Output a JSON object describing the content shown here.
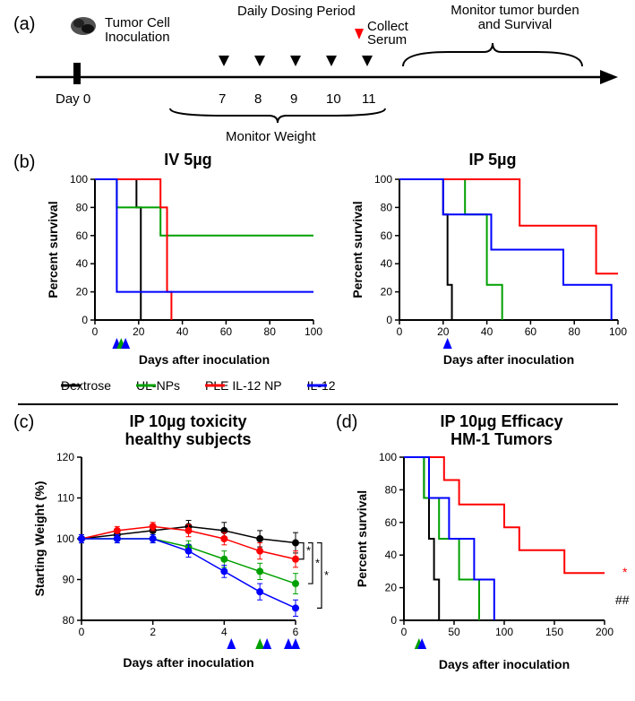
{
  "panels": {
    "a": {
      "label": "(a)"
    },
    "b": {
      "label": "(b)"
    },
    "c": {
      "label": "(c)"
    },
    "d": {
      "label": "(d)"
    }
  },
  "timeline": {
    "inoculation_label": "Tumor Cell\nInoculation",
    "dosing_label": "Daily Dosing Period",
    "serum_label": "Collect\nSerum",
    "monitor_burden_label": "Monitor tumor burden\nand Survival",
    "day0_label": "Day 0",
    "days": [
      "7",
      "8",
      "9",
      "10",
      "11"
    ],
    "monitor_weight_label": "Monitor Weight",
    "line_color": "#000000",
    "arrowhead_color": "#000000",
    "serum_arrow_color": "#ff0000",
    "tumor_icon": "●"
  },
  "legend": {
    "items": [
      {
        "name": "Dextrose",
        "color": "#000000"
      },
      {
        "name": "UL-NPs",
        "color": "#00a000"
      },
      {
        "name": "PLE IL-12 NP",
        "color": "#ff0000"
      },
      {
        "name": "IL-12",
        "color": "#0000ff"
      }
    ]
  },
  "chart_b_left": {
    "title": "IV 5µg",
    "type": "kaplan-meier",
    "xlabel": "Days after inoculation",
    "ylabel": "Percent survival",
    "xlim": [
      0,
      100
    ],
    "xticks": [
      0,
      20,
      40,
      60,
      80,
      100
    ],
    "ylim": [
      0,
      100
    ],
    "yticks": [
      0,
      20,
      40,
      60,
      80,
      100
    ],
    "background": "#ffffff",
    "axis_color": "#000000",
    "line_width": 2,
    "arrows": [
      {
        "x": 10,
        "color": "#0000ff"
      },
      {
        "x": 12,
        "color": "#00a000"
      },
      {
        "x": 14,
        "color": "#0000ff"
      }
    ],
    "series": {
      "Dextrose": {
        "color": "#000000",
        "steps": [
          [
            0,
            100
          ],
          [
            19,
            100
          ],
          [
            19,
            80
          ],
          [
            21,
            80
          ],
          [
            21,
            0
          ]
        ]
      },
      "UL-NPs": {
        "color": "#00a000",
        "steps": [
          [
            0,
            100
          ],
          [
            10,
            100
          ],
          [
            10,
            80
          ],
          [
            30,
            80
          ],
          [
            30,
            60
          ],
          [
            100,
            60
          ]
        ]
      },
      "PLE": {
        "color": "#ff0000",
        "steps": [
          [
            0,
            100
          ],
          [
            30,
            100
          ],
          [
            30,
            80
          ],
          [
            33,
            80
          ],
          [
            33,
            20
          ],
          [
            35,
            20
          ],
          [
            35,
            0
          ]
        ]
      },
      "IL-12": {
        "color": "#0000ff",
        "steps": [
          [
            0,
            100
          ],
          [
            10,
            100
          ],
          [
            10,
            20
          ],
          [
            100,
            20
          ]
        ]
      }
    }
  },
  "chart_b_right": {
    "title": "IP 5µg",
    "type": "kaplan-meier",
    "xlabel": "Days after inoculation",
    "ylabel": "Percent survival",
    "xlim": [
      0,
      100
    ],
    "xticks": [
      0,
      20,
      40,
      60,
      80,
      100
    ],
    "ylim": [
      0,
      100
    ],
    "yticks": [
      0,
      20,
      40,
      60,
      80,
      100
    ],
    "background": "#ffffff",
    "axis_color": "#000000",
    "line_width": 2,
    "arrows": [
      {
        "x": 22,
        "color": "#0000ff"
      }
    ],
    "series": {
      "Dextrose": {
        "color": "#000000",
        "steps": [
          [
            0,
            100
          ],
          [
            20,
            100
          ],
          [
            20,
            75
          ],
          [
            22,
            75
          ],
          [
            22,
            25
          ],
          [
            24,
            25
          ],
          [
            24,
            0
          ]
        ]
      },
      "UL-NPs": {
        "color": "#00a000",
        "steps": [
          [
            0,
            100
          ],
          [
            30,
            100
          ],
          [
            30,
            75
          ],
          [
            40,
            75
          ],
          [
            40,
            25
          ],
          [
            47,
            25
          ],
          [
            47,
            0
          ]
        ]
      },
      "PLE": {
        "color": "#ff0000",
        "steps": [
          [
            0,
            100
          ],
          [
            55,
            100
          ],
          [
            55,
            67
          ],
          [
            90,
            67
          ],
          [
            90,
            33
          ],
          [
            100,
            33
          ]
        ]
      },
      "IL-12": {
        "color": "#0000ff",
        "steps": [
          [
            0,
            100
          ],
          [
            20,
            100
          ],
          [
            20,
            75
          ],
          [
            42,
            75
          ],
          [
            42,
            50
          ],
          [
            75,
            50
          ],
          [
            75,
            25
          ],
          [
            97,
            25
          ],
          [
            97,
            0
          ]
        ]
      }
    }
  },
  "chart_c": {
    "title": "IP 10µg toxicity\nhealthy subjects",
    "type": "line-errorbar",
    "xlabel": "Days after inoculation",
    "ylabel": "Starting Weight (%)",
    "xlim": [
      0,
      6
    ],
    "xticks": [
      0,
      2,
      4,
      6
    ],
    "ylim": [
      80,
      120
    ],
    "yticks": [
      80,
      90,
      100,
      110,
      120
    ],
    "background": "#ffffff",
    "axis_color": "#000000",
    "line_width": 1.5,
    "marker": "circle",
    "marker_size": 4,
    "arrows": [
      {
        "x": 4.2,
        "color": "#0000ff"
      },
      {
        "x": 5.0,
        "color": "#00a000"
      },
      {
        "x": 5.2,
        "color": "#0000ff"
      },
      {
        "x": 5.8,
        "color": "#0000ff"
      },
      {
        "x": 6.0,
        "color": "#0000ff"
      }
    ],
    "signif": [
      "*",
      "*",
      "*"
    ],
    "series": {
      "Dextrose": {
        "color": "#000000",
        "x": [
          0,
          1,
          2,
          3,
          4,
          5,
          6
        ],
        "y": [
          100,
          101,
          102,
          103,
          102,
          100,
          99
        ],
        "err": [
          1,
          1,
          1.5,
          1.5,
          2,
          2,
          2.5
        ]
      },
      "PLE": {
        "color": "#ff0000",
        "x": [
          0,
          1,
          2,
          3,
          4,
          5,
          6
        ],
        "y": [
          100,
          102,
          103,
          102,
          100,
          97,
          95
        ],
        "err": [
          1,
          1,
          1,
          1.5,
          1.5,
          2,
          2
        ]
      },
      "UL-NPs": {
        "color": "#00a000",
        "x": [
          0,
          1,
          2,
          3,
          4,
          5,
          6
        ],
        "y": [
          100,
          100,
          100,
          98,
          95,
          92,
          89
        ],
        "err": [
          1,
          1,
          1,
          1.5,
          2,
          2,
          2.5
        ]
      },
      "IL-12": {
        "color": "#0000ff",
        "x": [
          0,
          1,
          2,
          3,
          4,
          5,
          6
        ],
        "y": [
          100,
          100,
          100,
          97,
          92,
          87,
          83
        ],
        "err": [
          1,
          1,
          1,
          1.5,
          1.5,
          2,
          2
        ]
      }
    }
  },
  "chart_d": {
    "title": "IP 10µg Efficacy\nHM-1 Tumors",
    "type": "kaplan-meier",
    "xlabel": "Days after inoculation",
    "ylabel": "Percent survival",
    "xlim": [
      0,
      200
    ],
    "xticks": [
      0,
      50,
      100,
      150,
      200
    ],
    "ylim": [
      0,
      100
    ],
    "yticks": [
      0,
      20,
      40,
      60,
      80,
      100
    ],
    "background": "#ffffff",
    "axis_color": "#000000",
    "line_width": 2,
    "arrows": [
      {
        "x": 15,
        "color": "#00a000"
      },
      {
        "x": 18,
        "color": "#0000ff"
      }
    ],
    "signif_labels": {
      "star": "*",
      "hash": "##"
    },
    "series": {
      "Dextrose": {
        "color": "#000000",
        "steps": [
          [
            0,
            100
          ],
          [
            20,
            100
          ],
          [
            20,
            75
          ],
          [
            25,
            75
          ],
          [
            25,
            50
          ],
          [
            30,
            50
          ],
          [
            30,
            25
          ],
          [
            35,
            25
          ],
          [
            35,
            0
          ]
        ]
      },
      "UL-NPs": {
        "color": "#00a000",
        "steps": [
          [
            0,
            100
          ],
          [
            20,
            100
          ],
          [
            20,
            75
          ],
          [
            35,
            75
          ],
          [
            35,
            50
          ],
          [
            55,
            50
          ],
          [
            55,
            25
          ],
          [
            75,
            25
          ],
          [
            75,
            0
          ]
        ]
      },
      "PLE": {
        "color": "#ff0000",
        "steps": [
          [
            0,
            100
          ],
          [
            40,
            100
          ],
          [
            40,
            86
          ],
          [
            55,
            86
          ],
          [
            55,
            71
          ],
          [
            100,
            71
          ],
          [
            100,
            57
          ],
          [
            115,
            57
          ],
          [
            115,
            43
          ],
          [
            160,
            43
          ],
          [
            160,
            29
          ],
          [
            200,
            29
          ]
        ]
      },
      "IL-12": {
        "color": "#0000ff",
        "steps": [
          [
            0,
            100
          ],
          [
            25,
            100
          ],
          [
            25,
            75
          ],
          [
            45,
            75
          ],
          [
            45,
            50
          ],
          [
            70,
            50
          ],
          [
            70,
            25
          ],
          [
            90,
            25
          ],
          [
            90,
            0
          ]
        ]
      }
    }
  }
}
